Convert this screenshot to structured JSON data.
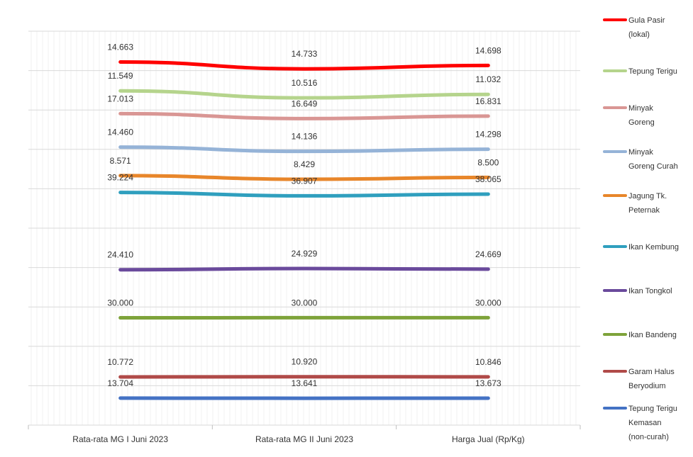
{
  "chart_data": {
    "type": "line",
    "categories": [
      "Rata-rata MG I Juni 2023",
      "Rata-rata MG II Juni 2023",
      "Harga Jual (Rp/Kg)"
    ],
    "series": [
      {
        "name": "Gula Pasir (lokal)",
        "legend_lines": [
          "Gula Pasir",
          "(lokal)"
        ],
        "color": "#ff0000",
        "values": [
          14663,
          14733,
          14698
        ],
        "labels": [
          "14.663",
          "14.733",
          "14.698"
        ]
      },
      {
        "name": "Tepung Terigu",
        "legend_lines": [
          "Tepung Terigu"
        ],
        "color": "#b5d48c",
        "values": [
          11549,
          10516,
          11032
        ],
        "labels": [
          "11.549",
          "10.516",
          "11.032"
        ]
      },
      {
        "name": "Minyak Goreng",
        "legend_lines": [
          "Minyak",
          "Goreng"
        ],
        "color": "#d99694",
        "values": [
          17013,
          16649,
          16831
        ],
        "labels": [
          "17.013",
          "16.649",
          "16.831"
        ]
      },
      {
        "name": "Minyak Goreng Curah",
        "legend_lines": [
          "Minyak",
          "Goreng Curah"
        ],
        "color": "#95b3d7",
        "values": [
          14460,
          14136,
          14298
        ],
        "labels": [
          "14.460",
          "14.136",
          "14.298"
        ]
      },
      {
        "name": "Jagung Tk. Peternak",
        "legend_lines": [
          "Jagung Tk.",
          "Peternak"
        ],
        "color": "#e8862a",
        "values": [
          8571,
          8429,
          8500
        ],
        "labels": [
          "8.571",
          "8.429",
          "8.500"
        ]
      },
      {
        "name": "Ikan Kembung",
        "legend_lines": [
          "Ikan Kembung"
        ],
        "color": "#2f9fbe",
        "values": [
          39224,
          36907,
          38065
        ],
        "labels": [
          "39.224",
          "36.907",
          "38.065"
        ]
      },
      {
        "name": "Ikan Tongkol",
        "legend_lines": [
          "Ikan Tongkol"
        ],
        "color": "#6a4a9c",
        "values": [
          24410,
          24929,
          24669
        ],
        "labels": [
          "24.410",
          "24.929",
          "24.669"
        ]
      },
      {
        "name": "Ikan Bandeng",
        "legend_lines": [
          "Ikan Bandeng"
        ],
        "color": "#7ea33a",
        "values": [
          30000,
          30000,
          30000
        ],
        "labels": [
          "30.000",
          "30.000",
          "30.000"
        ]
      },
      {
        "name": "Garam Halus Beryodium",
        "legend_lines": [
          "Garam Halus",
          "Beryodium"
        ],
        "color": "#b04a48",
        "values": [
          10772,
          10920,
          10846
        ],
        "labels": [
          "10.772",
          "10.920",
          "10.846"
        ]
      },
      {
        "name": "Tepung Terigu Kemasan (non-curah)",
        "legend_lines": [
          "Tepung Terigu",
          "Kemasan",
          "(non-curah)"
        ],
        "color": "#4472c4",
        "values": [
          13704,
          13641,
          13673
        ],
        "labels": [
          "13.704",
          "13.641",
          "13.673"
        ]
      }
    ],
    "stacked": true,
    "grid": true,
    "legend_position": "right"
  }
}
